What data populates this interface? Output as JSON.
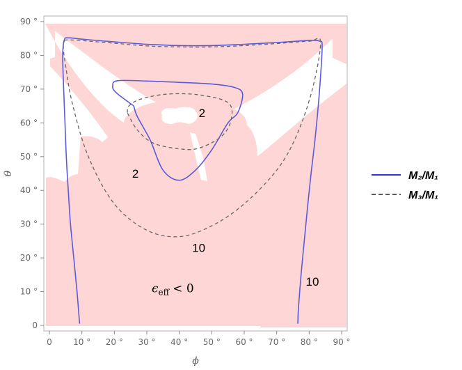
{
  "chart_data": {
    "type": "line",
    "title": "",
    "xlabel": "ϕ",
    "ylabel": "θ",
    "xlim": [
      0,
      90
    ],
    "ylim": [
      0,
      90
    ],
    "grid": false,
    "legend_position": "right",
    "xticks": [
      "0",
      "10 °",
      "20 °",
      "30 °",
      "40 °",
      "50 °",
      "60 °",
      "70 °",
      "80 °",
      "90 °"
    ],
    "yticks": [
      "0",
      "10 °",
      "20 °",
      "30 °",
      "40 °",
      "50 °",
      "60 °",
      "70 °",
      "80 °",
      "90 °"
    ],
    "colors": {
      "region": "#ffd6d6",
      "m2": "#5b5bd9",
      "m3": "#666666"
    },
    "region": {
      "label": "ϵ_eff < 0",
      "label_parts": {
        "symbol": "ϵ",
        "sub": "eff",
        "rel": "< 0"
      },
      "label_at": [
        38,
        11
      ]
    },
    "series": [
      {
        "name": "M₂/M₁",
        "legend_label": "M₂/M₁",
        "style": "solid",
        "curves": [
          {
            "level": "10",
            "label_at": [
              81,
              13
            ],
            "points": [
              [
                9.3,
                0.5
              ],
              [
                8.5,
                10
              ],
              [
                7.5,
                20
              ],
              [
                6.5,
                30
              ],
              [
                5.8,
                40
              ],
              [
                5.2,
                50
              ],
              [
                4.8,
                60
              ],
              [
                4.4,
                70
              ],
              [
                4.1,
                80
              ],
              [
                4.6,
                84.6
              ],
              [
                6,
                85.2
              ],
              [
                10,
                84.8
              ],
              [
                20,
                84
              ],
              [
                30,
                83.3
              ],
              [
                40,
                82.9
              ],
              [
                50,
                82.9
              ],
              [
                60,
                83.3
              ],
              [
                70,
                83.8
              ],
              [
                80,
                84.4
              ],
              [
                83.3,
                84.2
              ],
              [
                84,
                83
              ],
              [
                83.6,
                75
              ],
              [
                82.8,
                65
              ],
              [
                81.8,
                55
              ],
              [
                80.6,
                45
              ],
              [
                79.5,
                35
              ],
              [
                78.5,
                25
              ],
              [
                77.5,
                15
              ],
              [
                76.7,
                5
              ],
              [
                76.5,
                0.5
              ]
            ]
          },
          {
            "level": "2",
            "label_at": [
              26.5,
              45
            ],
            "points": [
              [
                26,
                65
              ],
              [
                20.5,
                69
              ],
              [
                19.5,
                71
              ],
              [
                21,
                72.5
              ],
              [
                30,
                72.4
              ],
              [
                40,
                72
              ],
              [
                50,
                71.5
              ],
              [
                57,
                70.5
              ],
              [
                59.5,
                68.5
              ],
              [
                58,
                63
              ],
              [
                55,
                60
              ],
              [
                50,
                52
              ],
              [
                45,
                46
              ],
              [
                40,
                43
              ],
              [
                35,
                46
              ],
              [
                31,
                55
              ],
              [
                27,
                62
              ],
              [
                26,
                65
              ]
            ]
          }
        ]
      },
      {
        "name": "M₃/M₁",
        "legend_label": "M₃/M₁",
        "style": "dashed",
        "curves": [
          {
            "level": "10",
            "label_at": [
              46,
              23
            ],
            "points": [
              [
                4.6,
                84.5
              ],
              [
                8,
                84.5
              ],
              [
                20,
                83.6
              ],
              [
                30,
                82.8
              ],
              [
                40,
                82.5
              ],
              [
                50,
                82.5
              ],
              [
                60,
                82.9
              ],
              [
                70,
                83.5
              ],
              [
                80,
                84.2
              ],
              [
                83.5,
                84
              ],
              [
                81,
                70
              ],
              [
                76,
                56
              ],
              [
                70,
                46
              ],
              [
                60,
                36
              ],
              [
                50,
                29.5
              ],
              [
                40,
                26.3
              ],
              [
                30,
                28.2
              ],
              [
                20,
                36
              ],
              [
                12,
                50
              ],
              [
                7,
                66
              ],
              [
                5,
                77
              ],
              [
                4.3,
                82
              ],
              [
                4.6,
                84.5
              ]
            ]
          },
          {
            "level": "2",
            "label_at": [
              47,
              63
            ],
            "points": [
              [
                24,
                63
              ],
              [
                24.5,
                65
              ],
              [
                28,
                67
              ],
              [
                36,
                68.5
              ],
              [
                46,
                68.3
              ],
              [
                55,
                66
              ],
              [
                56,
                61
              ],
              [
                53,
                56
              ],
              [
                46,
                52.5
              ],
              [
                40,
                52.3
              ],
              [
                32,
                54
              ],
              [
                27,
                58
              ],
              [
                24,
                63
              ]
            ]
          }
        ]
      }
    ]
  }
}
